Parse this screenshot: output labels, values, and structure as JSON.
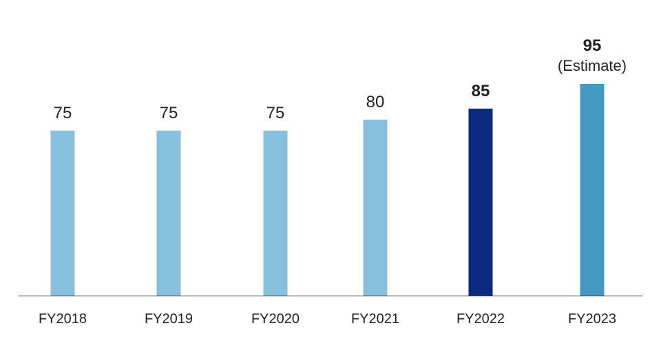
{
  "chart_data": {
    "type": "bar",
    "title": "",
    "xlabel": "",
    "ylabel": "",
    "ylim": [
      0,
      100
    ],
    "grid": false,
    "categories": [
      "FY2018",
      "FY2019",
      "FY2020",
      "FY2021",
      "FY2022",
      "FY2023"
    ],
    "values": [
      75,
      75,
      75,
      80,
      85,
      95
    ],
    "value_labels": [
      "75",
      "75",
      "75",
      "80",
      "85",
      "95"
    ],
    "annotations": [
      {
        "category": "FY2023",
        "text": "(Estimate)"
      }
    ],
    "colors": {
      "default_bar": "#86c0dc",
      "current_bar": "#0a2a7e",
      "estimate_bar": "#4399c1",
      "current_label": "#0a2a7e",
      "estimate_label": "#111111",
      "axis": "#333333"
    },
    "highlight": {
      "FY2022": "current",
      "FY2023": "estimate"
    }
  }
}
